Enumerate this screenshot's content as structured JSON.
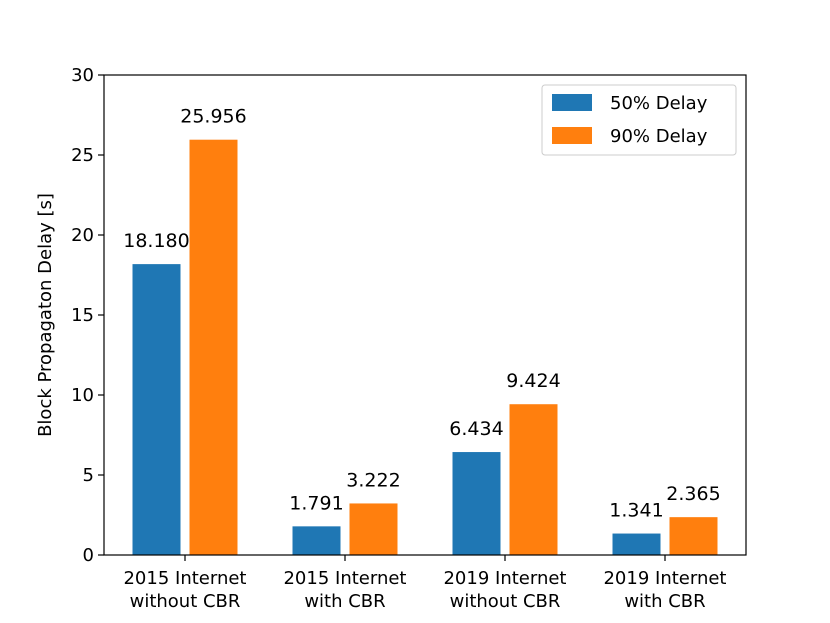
{
  "chart_data": {
    "type": "bar",
    "title": "",
    "xlabel": "",
    "ylabel": "Block Propagaton Delay [s]",
    "ylim": [
      0,
      30
    ],
    "yticks": [
      0,
      5,
      10,
      15,
      20,
      25,
      30
    ],
    "grid": false,
    "legend_position": "top-right",
    "categories": [
      [
        "2015 Internet",
        "without CBR"
      ],
      [
        "2015 Internet",
        "with CBR"
      ],
      [
        "2019 Internet",
        "without CBR"
      ],
      [
        "2019 Internet",
        "with CBR"
      ]
    ],
    "series": [
      {
        "name": "50% Delay",
        "color": "#1f77b4",
        "values": [
          18.18,
          1.791,
          6.434,
          1.341
        ],
        "labels": [
          "18.180",
          "1.791",
          "6.434",
          "1.341"
        ]
      },
      {
        "name": "90% Delay",
        "color": "#ff7f0e",
        "values": [
          25.956,
          3.222,
          9.424,
          2.365
        ],
        "labels": [
          "25.956",
          "3.222",
          "9.424",
          "2.365"
        ]
      }
    ]
  }
}
